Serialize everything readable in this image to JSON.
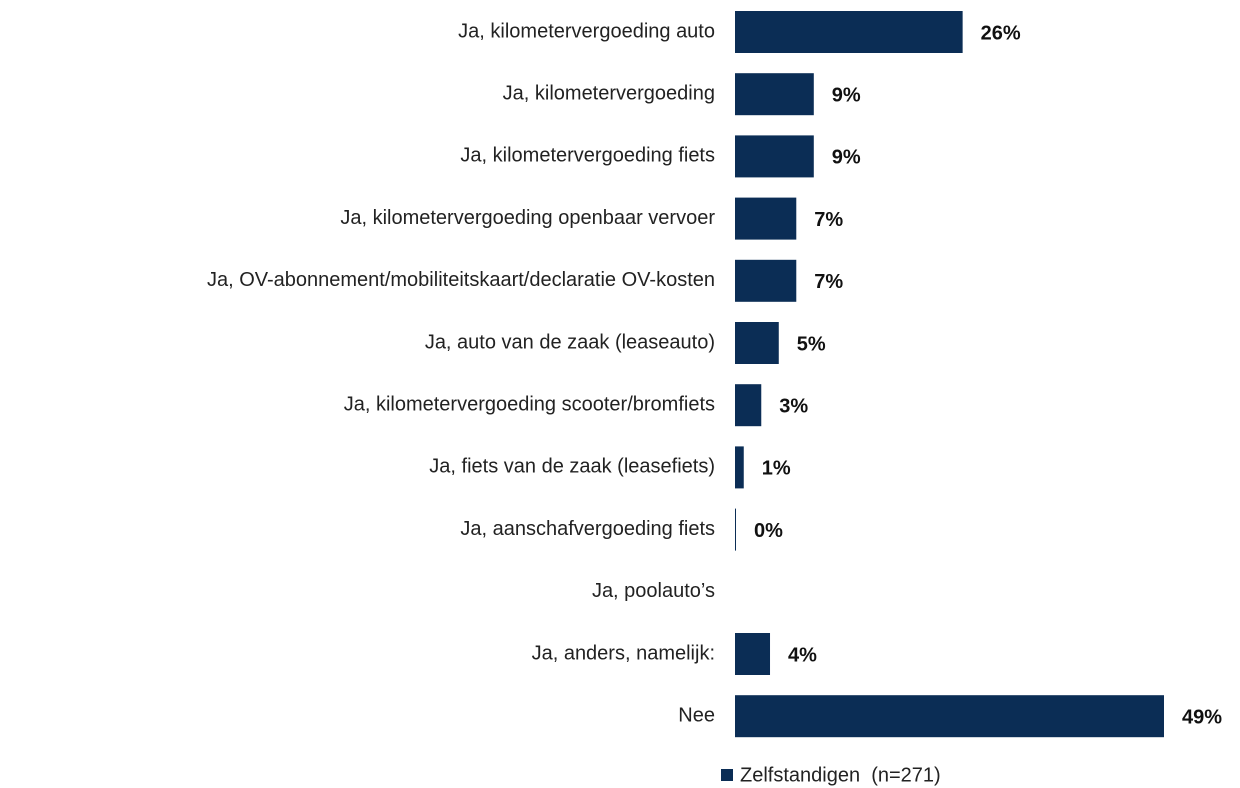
{
  "chart_data": {
    "type": "bar",
    "orientation": "horizontal",
    "categories": [
      "Ja, kilometervergoeding auto",
      "Ja, kilometervergoeding",
      "Ja, kilometervergoeding fiets",
      "Ja, kilometervergoeding openbaar vervoer",
      "Ja, OV-abonnement/mobiliteitskaart/declaratie OV-kosten",
      "Ja, auto van de zaak (leaseauto)",
      "Ja, kilometervergoeding scooter/bromfiets",
      "Ja, fiets van de zaak (leasefiets)",
      "Ja, aanschafvergoeding fiets",
      "Ja, poolauto’s",
      "Ja, anders, namelijk:",
      "Nee"
    ],
    "series": [
      {
        "name": "Zelfstandigen  (n=271)",
        "color": "#0b2d55",
        "values": [
          26,
          9,
          9,
          7,
          7,
          5,
          3,
          1,
          0,
          null,
          4,
          49
        ],
        "value_labels": [
          "26%",
          "9%",
          "9%",
          "7%",
          "7%",
          "5%",
          "3%",
          "1%",
          "0%",
          null,
          "4%",
          "49%"
        ]
      }
    ],
    "legend": "bottom"
  }
}
